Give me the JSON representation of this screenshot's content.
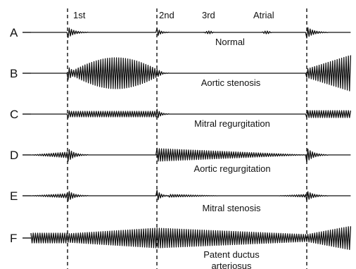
{
  "event_labels": [
    "1st",
    "2nd",
    "3rd",
    "Atrial"
  ],
  "rows": [
    {
      "letter": "A",
      "caption": "Normal"
    },
    {
      "letter": "B",
      "caption": "Aortic stenosis"
    },
    {
      "letter": "C",
      "caption": "Mitral regurgitation"
    },
    {
      "letter": "D",
      "caption": "Aortic regurgitation"
    },
    {
      "letter": "E",
      "caption": "Mitral stenosis"
    },
    {
      "letter": "F",
      "caption": "Patent ductus",
      "caption_line2": "arteriosus"
    }
  ],
  "colors": {
    "ink": "#111111",
    "background": "#ffffff"
  }
}
